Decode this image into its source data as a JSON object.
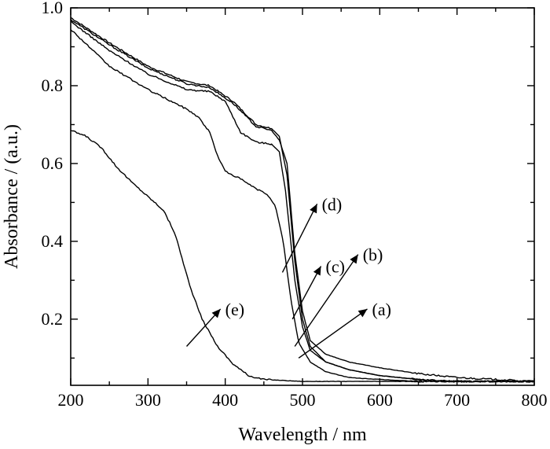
{
  "chart_data": {
    "type": "line",
    "xlabel": "Wavelength / nm",
    "ylabel": "Absorbance / (a.u.)",
    "xlim": [
      200,
      800
    ],
    "ylim": [
      0.03,
      1.0
    ],
    "xticks": [
      200,
      300,
      400,
      500,
      600,
      700,
      800
    ],
    "yticks": [
      0.2,
      0.4,
      0.6,
      0.8,
      1.0
    ],
    "xtick_labels": [
      "200",
      "300",
      "400",
      "500",
      "600",
      "700",
      "800"
    ],
    "ytick_labels": [
      "0.2",
      "0.4",
      "0.6",
      "0.8",
      "1.0"
    ],
    "grid": false,
    "series": [
      {
        "name": "(a)",
        "points": [
          [
            200,
            0.975
          ],
          [
            250,
            0.91
          ],
          [
            300,
            0.85
          ],
          [
            350,
            0.81
          ],
          [
            380,
            0.8
          ],
          [
            410,
            0.76
          ],
          [
            440,
            0.7
          ],
          [
            460,
            0.69
          ],
          [
            470,
            0.67
          ],
          [
            480,
            0.57
          ],
          [
            490,
            0.35
          ],
          [
            500,
            0.2
          ],
          [
            510,
            0.13
          ],
          [
            530,
            0.09
          ],
          [
            560,
            0.07
          ],
          [
            600,
            0.055
          ],
          [
            650,
            0.045
          ],
          [
            700,
            0.04
          ],
          [
            750,
            0.04
          ],
          [
            800,
            0.04
          ]
        ]
      },
      {
        "name": "(b)",
        "points": [
          [
            200,
            0.97
          ],
          [
            250,
            0.905
          ],
          [
            300,
            0.845
          ],
          [
            350,
            0.805
          ],
          [
            380,
            0.795
          ],
          [
            410,
            0.755
          ],
          [
            440,
            0.695
          ],
          [
            460,
            0.685
          ],
          [
            470,
            0.66
          ],
          [
            480,
            0.6
          ],
          [
            490,
            0.37
          ],
          [
            500,
            0.22
          ],
          [
            510,
            0.145
          ],
          [
            530,
            0.11
          ],
          [
            560,
            0.09
          ],
          [
            600,
            0.075
          ],
          [
            650,
            0.06
          ],
          [
            700,
            0.05
          ],
          [
            750,
            0.045
          ],
          [
            800,
            0.04
          ]
        ]
      },
      {
        "name": "(c)",
        "points": [
          [
            200,
            0.965
          ],
          [
            250,
            0.89
          ],
          [
            300,
            0.83
          ],
          [
            350,
            0.79
          ],
          [
            380,
            0.785
          ],
          [
            400,
            0.76
          ],
          [
            420,
            0.68
          ],
          [
            440,
            0.655
          ],
          [
            460,
            0.65
          ],
          [
            470,
            0.63
          ],
          [
            478,
            0.53
          ],
          [
            490,
            0.3
          ],
          [
            500,
            0.18
          ],
          [
            510,
            0.12
          ],
          [
            530,
            0.09
          ],
          [
            560,
            0.07
          ],
          [
            600,
            0.055
          ],
          [
            650,
            0.045
          ],
          [
            700,
            0.04
          ],
          [
            800,
            0.04
          ]
        ]
      },
      {
        "name": "(d)",
        "points": [
          [
            200,
            0.945
          ],
          [
            250,
            0.85
          ],
          [
            300,
            0.79
          ],
          [
            350,
            0.74
          ],
          [
            365,
            0.72
          ],
          [
            380,
            0.68
          ],
          [
            390,
            0.62
          ],
          [
            400,
            0.58
          ],
          [
            420,
            0.56
          ],
          [
            440,
            0.535
          ],
          [
            455,
            0.52
          ],
          [
            465,
            0.49
          ],
          [
            475,
            0.4
          ],
          [
            485,
            0.25
          ],
          [
            495,
            0.14
          ],
          [
            510,
            0.09
          ],
          [
            530,
            0.065
          ],
          [
            560,
            0.05
          ],
          [
            600,
            0.045
          ],
          [
            650,
            0.04
          ],
          [
            700,
            0.04
          ],
          [
            800,
            0.04
          ]
        ]
      },
      {
        "name": "(e)",
        "points": [
          [
            200,
            0.685
          ],
          [
            220,
            0.67
          ],
          [
            240,
            0.64
          ],
          [
            260,
            0.59
          ],
          [
            280,
            0.55
          ],
          [
            300,
            0.515
          ],
          [
            320,
            0.48
          ],
          [
            335,
            0.42
          ],
          [
            345,
            0.35
          ],
          [
            355,
            0.28
          ],
          [
            370,
            0.2
          ],
          [
            390,
            0.13
          ],
          [
            410,
            0.085
          ],
          [
            430,
            0.055
          ],
          [
            450,
            0.045
          ],
          [
            500,
            0.04
          ],
          [
            600,
            0.04
          ],
          [
            800,
            0.04
          ]
        ]
      }
    ],
    "annotations": [
      {
        "text": "(a)",
        "data_x": 590,
        "data_y": 0.21
      },
      {
        "text": "(b)",
        "data_x": 578,
        "data_y": 0.35
      },
      {
        "text": "(c)",
        "data_x": 530,
        "data_y": 0.32
      },
      {
        "text": "(d)",
        "data_x": 525,
        "data_y": 0.48
      },
      {
        "text": "(e)",
        "data_x": 400,
        "data_y": 0.21
      }
    ]
  }
}
